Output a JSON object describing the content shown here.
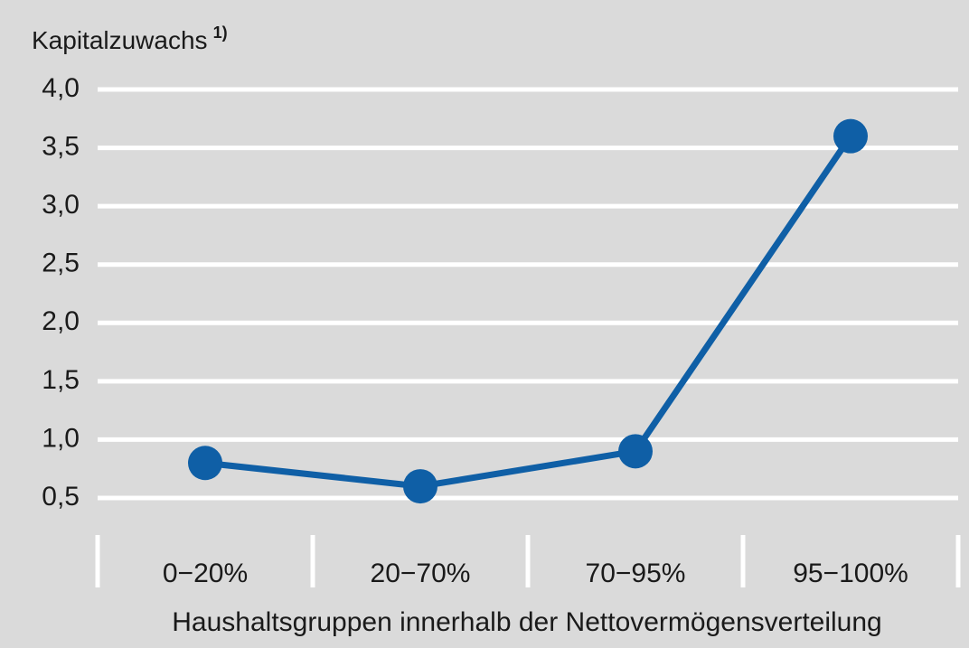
{
  "chart_data": {
    "type": "line",
    "ylabel": "Kapitalzuwachs",
    "ylabel_note": "1)",
    "xlabel": "Haushaltsgruppen innerhalb der Nettovermögensverteilung",
    "categories": [
      "0−20%",
      "20−70%",
      "70−95%",
      "95−100%"
    ],
    "values": [
      0.8,
      0.6,
      0.9,
      3.6
    ],
    "color": "#0f5fa6",
    "ylim": [
      0.5,
      4.0
    ],
    "yticks": [
      {
        "value": 0.5,
        "label": "0,5"
      },
      {
        "value": 1.0,
        "label": "1,0"
      },
      {
        "value": 1.5,
        "label": "1,5"
      },
      {
        "value": 2.0,
        "label": "2,0"
      },
      {
        "value": 2.5,
        "label": "2,5"
      },
      {
        "value": 3.0,
        "label": "3,0"
      },
      {
        "value": 3.5,
        "label": "3,5"
      },
      {
        "value": 4.0,
        "label": "4,0"
      }
    ],
    "grid": true
  }
}
